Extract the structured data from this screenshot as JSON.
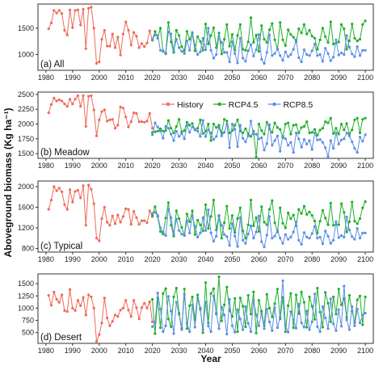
{
  "chart_data": {
    "type": "line",
    "xlabel": "Year",
    "ylabel": "Aboveground biomass (Kg ha⁻¹)",
    "xlim": [
      1977,
      2103
    ],
    "xticks": [
      1980,
      1990,
      2000,
      2010,
      2020,
      2030,
      2040,
      2050,
      2060,
      2070,
      2080,
      2090,
      2100
    ],
    "legend": {
      "position": "top-center",
      "entries": [
        {
          "name": "History",
          "color": "#ef6a5a"
        },
        {
          "name": "RCP4.5",
          "color": "#1fb02a"
        },
        {
          "name": "RCP8.5",
          "color": "#5b8fe6"
        }
      ]
    },
    "colors": {
      "History": "#ef6a5a",
      "RCP4.5": "#1fb02a",
      "RCP8.5": "#5b8fe6"
    },
    "panels": [
      {
        "label": "(a) All",
        "ylim": [
          700,
          1960
        ],
        "yticks": [
          1000,
          1500
        ],
        "series": [
          {
            "name": "History",
            "x_start": 1981,
            "values": [
              1490,
              1600,
              1840,
              1790,
              1840,
              1780,
              1460,
              1370,
              1850,
              1510,
              1840,
              1850,
              1560,
              1860,
              1110,
              1880,
              1900,
              1500,
              830,
              860,
              1290,
              1460,
              1160,
              1160,
              1390,
              1130,
              1330,
              990,
              1390,
              1620,
              1460,
              1180,
              1420,
              1350,
              1130,
              1210,
              1150,
              1220,
              1450,
              1270
            ]
          },
          {
            "name": "RCP4.5",
            "x_start": 2020,
            "values": [
              1280,
              1440,
              1310,
              1500,
              1060,
              1030,
              1610,
              1240,
              1040,
              1460,
              1360,
              1150,
              1070,
              1440,
              1290,
              1410,
              1070,
              1340,
              1250,
              1080,
              1580,
              1200,
              1360,
              1510,
              1130,
              1410,
              1010,
              1290,
              1570,
              1160,
              1380,
              1080,
              1360,
              1570,
              1100,
              1080,
              1240,
              1700,
              1230,
              1370,
              1060,
              1550,
              1290,
              1230,
              1470,
              1590,
              1280,
              1100,
              1610,
              1280,
              1170,
              1470,
              1380,
              1330,
              1240,
              1490,
              1410,
              1570,
              1390,
              1460,
              1350,
              1310,
              1100,
              1280,
              1500,
              1340,
              1230,
              1620,
              1200,
              1220,
              1240,
              1570,
              1490,
              1100,
              1260,
              1580,
              1310,
              1260,
              1290,
              1570,
              1640
            ]
          },
          {
            "name": "RCP8.5",
            "x_start": 2020,
            "values": [
              1290,
              1370,
              1360,
              1080,
              1070,
              1010,
              1430,
              1390,
              1070,
              1290,
              1130,
              1060,
              1020,
              1260,
              1080,
              1420,
              1180,
              1000,
              1050,
              1310,
              1090,
              1500,
              1080,
              930,
              1000,
              1350,
              1230,
              1040,
              1040,
              860,
              1240,
              1020,
              840,
              1310,
              930,
              870,
              1070,
              1190,
              970,
              1090,
              1380,
              910,
              830,
              1040,
              1370,
              980,
              1020,
              1110,
              980,
              890,
              1050,
              960,
              1000,
              1100,
              1280,
              940,
              860,
              1090,
              1000,
              980,
              1070,
              1200,
              980,
              1000,
              870,
              1120,
              1020,
              880,
              950,
              1280,
              990,
              1030,
              1000,
              1360,
              1140,
              1010,
              960,
              1150,
              980,
              1080,
              1080
            ]
          }
        ]
      },
      {
        "label": "(b) Meadow",
        "ylim": [
          1420,
          2540
        ],
        "yticks": [
          1500,
          1750,
          2000,
          2250,
          2500
        ],
        "series": [
          {
            "name": "History",
            "x_start": 1981,
            "values": [
              2190,
              2330,
              2440,
              2390,
              2410,
              2390,
              2340,
              2300,
              2420,
              2340,
              2420,
              2480,
              2300,
              2480,
              1960,
              2470,
              2480,
              2240,
              1800,
              2070,
              2210,
              2240,
              2050,
              2070,
              2080,
              1930,
              1980,
              2290,
              2270,
              2120,
              1950,
              2040,
              2190,
              2180,
              2040,
              2040,
              2030,
              2050,
              2180,
              1930
            ]
          },
          {
            "name": "RCP4.5",
            "x_start": 2020,
            "values": [
              1860,
              1870,
              1880,
              1920,
              1880,
              1890,
              2060,
              1930,
              1850,
              1960,
              2080,
              1870,
              1890,
              2030,
              1980,
              2010,
              1900,
              1930,
              2070,
              1840,
              1880,
              2000,
              1720,
              2000,
              1940,
              1980,
              1850,
              2080,
              2050,
              1850,
              1890,
              1980,
              2070,
              1880,
              1850,
              1920,
              1840,
              1790,
              1880,
              1440,
              2000,
              1890,
              1830,
              2030,
              1920,
              1860,
              2020,
              1940,
              1910,
              1770,
              2000,
              2020,
              1830,
              1980,
              1990,
              1850,
              1940,
              1960,
              2040,
              1850,
              1860,
              1910,
              1810,
              1900,
              1930,
              2040,
              2020,
              2100,
              1840,
              1930,
              1830,
              2000,
              1900,
              2010,
              1840,
              1900,
              2070,
              2100,
              1850,
              2080,
              2100
            ]
          },
          {
            "name": "RCP8.5",
            "x_start": 2020,
            "values": [
              1820,
              2020,
              1950,
              1880,
              1760,
              1960,
              1930,
              1830,
              1720,
              1880,
              1790,
              1840,
              1750,
              1980,
              1860,
              1950,
              1910,
              1880,
              1790,
              2060,
              1790,
              1900,
              1850,
              1740,
              1790,
              1950,
              1800,
              1860,
              2000,
              1600,
              2000,
              1910,
              1620,
              1980,
              1760,
              1700,
              1800,
              2050,
              1830,
              1830,
              1750,
              1770,
              1560,
              1670,
              1990,
              1640,
              1720,
              1800,
              1540,
              1800,
              1750,
              1640,
              1690,
              1520,
              1850,
              1750,
              1610,
              1740,
              1660,
              1720,
              1570,
              1850,
              1730,
              1740,
              1690,
              1600,
              1450,
              1720,
              1590,
              1850,
              1660,
              1730,
              1750,
              1850,
              1800,
              1700,
              1590,
              1520,
              1780,
              1710,
              1820
            ]
          }
        ]
      },
      {
        "label": "(c) Typical",
        "ylim": [
          730,
          2110
        ],
        "yticks": [
          800,
          1200,
          1600,
          2000
        ],
        "series": [
          {
            "name": "History",
            "x_start": 1981,
            "values": [
              1560,
              1740,
              2000,
              1920,
              1970,
              1900,
              1650,
              1560,
              1940,
              1700,
              1910,
              1930,
              1780,
              2020,
              1250,
              2030,
              1950,
              1670,
              1000,
              950,
              1380,
              1600,
              1310,
              1250,
              1430,
              1280,
              1450,
              1310,
              1420,
              1570,
              1560,
              1270,
              1520,
              1400,
              1270,
              1340,
              1340,
              1300,
              1530,
              1420
            ]
          },
          {
            "name": "RCP4.5",
            "x_start": 2020,
            "values": [
              1440,
              1610,
              1420,
              1130,
              1080,
              1390,
              1690,
              1250,
              1040,
              1530,
              1380,
              1210,
              1060,
              1470,
              1320,
              1530,
              1070,
              1350,
              1260,
              1140,
              1650,
              1190,
              1420,
              1740,
              1160,
              1440,
              1000,
              1300,
              1620,
              1190,
              1440,
              1110,
              1380,
              1590,
              1140,
              1000,
              1260,
              1740,
              1240,
              1400,
              1130,
              1610,
              1310,
              1260,
              1560,
              1730,
              1300,
              1120,
              1590,
              1290,
              1200,
              1490,
              1380,
              1450,
              1240,
              1560,
              1480,
              1620,
              1460,
              1510,
              1440,
              1330,
              1100,
              1330,
              1540,
              1390,
              1260,
              1680,
              1250,
              1270,
              1260,
              1670,
              1500,
              1120,
              1320,
              1700,
              1330,
              1280,
              1380,
              1590,
              1710
            ]
          },
          {
            "name": "RCP8.5",
            "x_start": 2020,
            "values": [
              1480,
              1500,
              1440,
              1200,
              1120,
              1050,
              1560,
              1400,
              1080,
              1370,
              1150,
              1080,
              1050,
              1340,
              1100,
              1430,
              1230,
              1020,
              1100,
              1400,
              1150,
              1550,
              1100,
              940,
              1040,
              1420,
              1250,
              1070,
              1030,
              860,
              1280,
              1040,
              840,
              1400,
              960,
              900,
              1080,
              1240,
              1000,
              1120,
              1430,
              930,
              830,
              1060,
              1420,
              1000,
              1040,
              1150,
              1000,
              900,
              1070,
              980,
              1020,
              1120,
              1310,
              960,
              880,
              1110,
              1020,
              1000,
              1090,
              1230,
              1000,
              1020,
              890,
              1140,
              1040,
              900,
              960,
              1320,
              1010,
              1050,
              1020,
              1410,
              1160,
              1030,
              980,
              1190,
              1000,
              1100,
              1100
            ]
          }
        ]
      },
      {
        "label": "(d) Desert",
        "ylim": [
          280,
          1700
        ],
        "yticks": [
          500,
          750,
          1000,
          1250,
          1500
        ],
        "series": [
          {
            "name": "History",
            "x_start": 1981,
            "values": [
              1260,
              1060,
              1330,
              1180,
              1120,
              1270,
              950,
              930,
              1380,
              1000,
              950,
              1160,
              1050,
              1220,
              860,
              1270,
              1230,
              1000,
              320,
              460,
              700,
              1210,
              800,
              640,
              730,
              860,
              830,
              960,
              1000,
              1160,
              960,
              830,
              1160,
              1010,
              780,
              1010,
              1100,
              1000,
              1130,
              720
            ]
          },
          {
            "name": "RCP4.5",
            "x_start": 2020,
            "values": [
              1180,
              480,
              1210,
              600,
              1300,
              1400,
              780,
              620,
              1230,
              1410,
              900,
              590,
              1390,
              580,
              1050,
              1230,
              760,
              1270,
              1000,
              500,
              1520,
              700,
              1300,
              1400,
              880,
              1640,
              740,
              1070,
              1430,
              950,
              830,
              1200,
              520,
              1210,
              1040,
              620,
              1260,
              880,
              1330,
              490,
              1160,
              940,
              640,
              1280,
              1000,
              820,
              1090,
              1390,
              780,
              1220,
              520,
              1050,
              1300,
              600,
              1270,
              890,
              1330,
              1120,
              610,
              1230,
              1040,
              770,
              1410,
              920,
              610,
              1320,
              1100,
              720,
              1230,
              880,
              1390,
              1070,
              1200,
              810,
              1260,
              940,
              700,
              1170,
              1250,
              660,
              1230
            ]
          },
          {
            "name": "RCP8.5",
            "x_start": 2020,
            "values": [
              620,
              700,
              1310,
              980,
              520,
              640,
              1240,
              940,
              480,
              1120,
              870,
              560,
              1280,
              690,
              520,
              1070,
              610,
              1210,
              970,
              560,
              1120,
              640,
              520,
              1250,
              910,
              580,
              1020,
              860,
              470,
              1180,
              640,
              510,
              970,
              780,
              560,
              1030,
              690,
              520,
              1160,
              860,
              640,
              890,
              580,
              980,
              720,
              540,
              1010,
              600,
              820,
              1560,
              640,
              510,
              930,
              760,
              590,
              1080,
              700,
              610,
              940,
              560,
              720,
              1290,
              620,
              520,
              1030,
              800,
              580,
              1190,
              680,
              540,
              970,
              630,
              1450,
              760,
              560,
              1030,
              640,
              980,
              700,
              860,
              900
            ]
          }
        ]
      }
    ]
  }
}
